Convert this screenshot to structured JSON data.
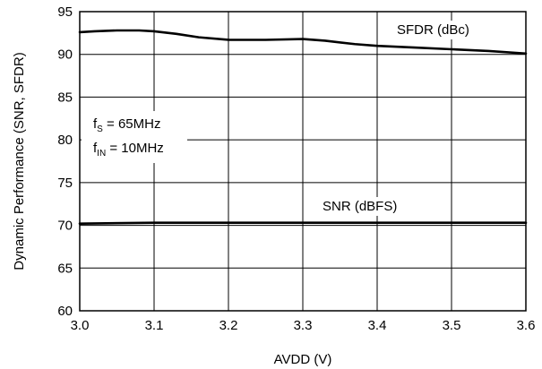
{
  "chart_data": {
    "type": "line",
    "xlabel": "AVDD (V)",
    "ylabel": "Dynamic Performance (SNR, SFDR)",
    "xlim": [
      3.0,
      3.6
    ],
    "ylim": [
      60,
      95
    ],
    "x_ticks": [
      "3.0",
      "3.1",
      "3.2",
      "3.3",
      "3.4",
      "3.5",
      "3.6"
    ],
    "y_ticks": [
      "60",
      "65",
      "70",
      "75",
      "80",
      "85",
      "90",
      "95"
    ],
    "grid": true,
    "series": [
      {
        "name": "SFDR (dBc)",
        "x": [
          3.0,
          3.02,
          3.05,
          3.08,
          3.1,
          3.13,
          3.16,
          3.2,
          3.25,
          3.3,
          3.33,
          3.37,
          3.4,
          3.45,
          3.5,
          3.55,
          3.6
        ],
        "y": [
          92.6,
          92.7,
          92.8,
          92.8,
          92.7,
          92.4,
          92.0,
          91.7,
          91.7,
          91.8,
          91.6,
          91.2,
          91.0,
          90.8,
          90.6,
          90.4,
          90.1
        ]
      },
      {
        "name": "SNR (dBFS)",
        "x": [
          3.0,
          3.1,
          3.2,
          3.3,
          3.4,
          3.5,
          3.6
        ],
        "y": [
          70.2,
          70.3,
          70.3,
          70.3,
          70.3,
          70.3,
          70.3
        ]
      }
    ],
    "annotations": [
      {
        "base": "f",
        "sub": "S",
        "rest": " = 65MHz"
      },
      {
        "base": "f",
        "sub": "IN",
        "rest": " = 10MHz"
      }
    ]
  }
}
